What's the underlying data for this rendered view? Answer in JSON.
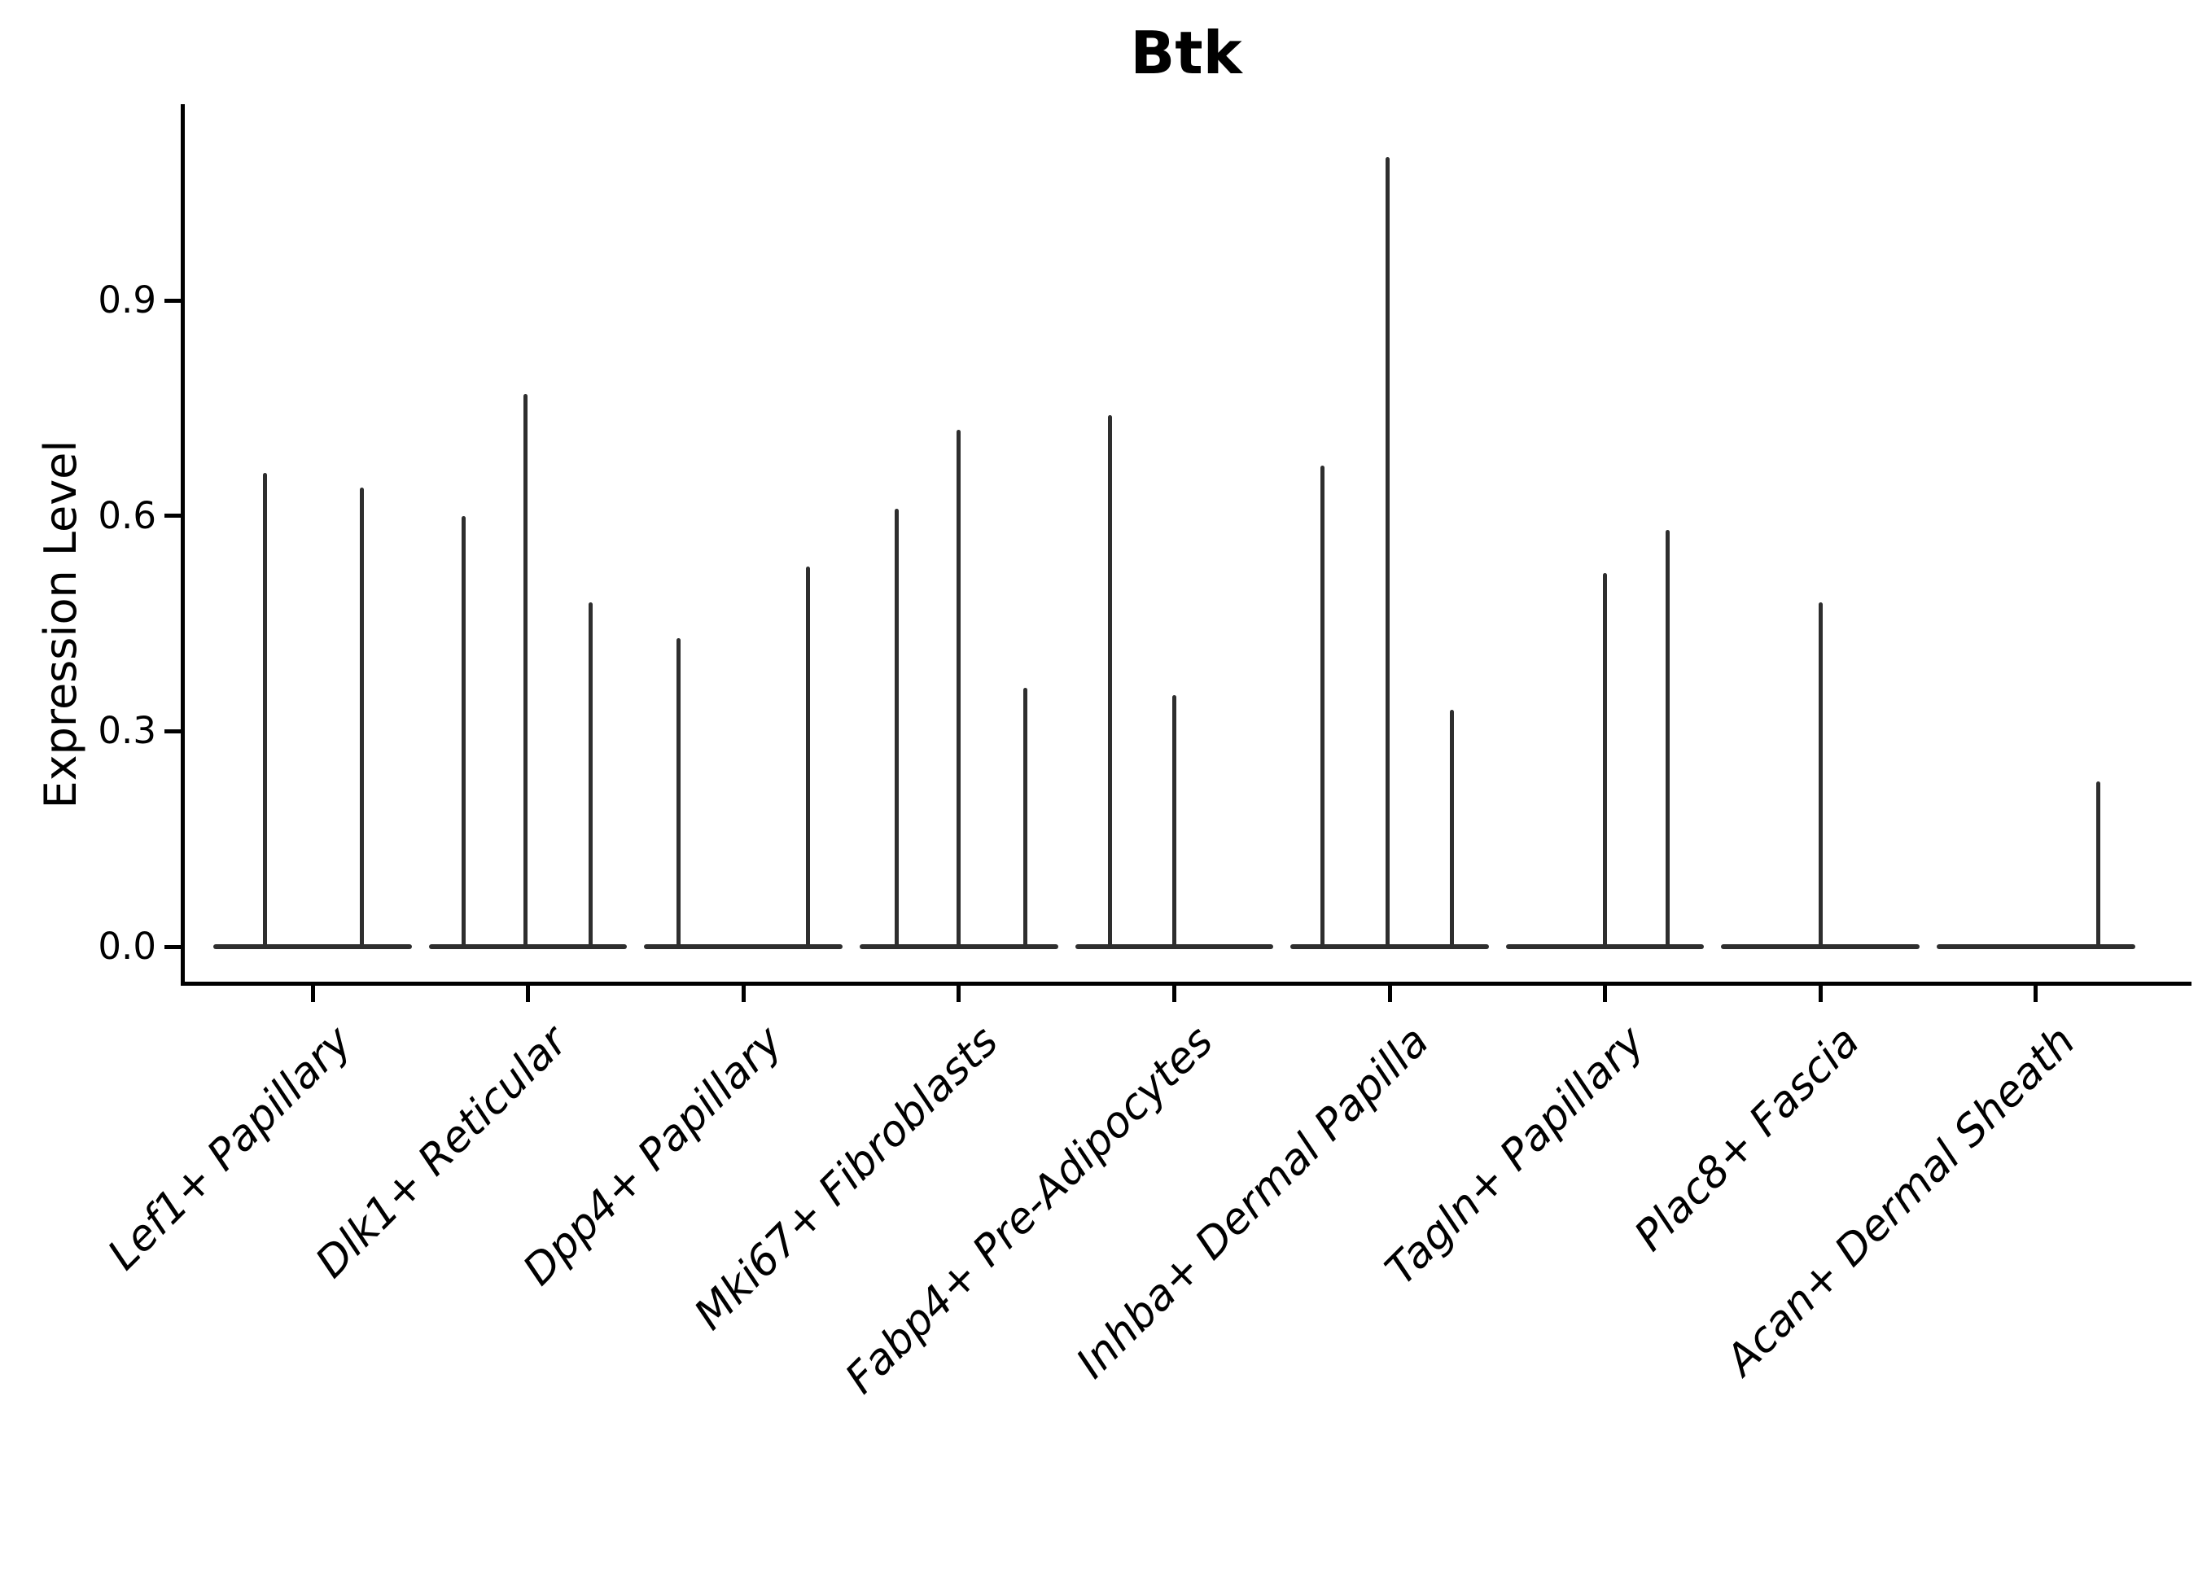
{
  "chart_data": {
    "type": "violin",
    "title": "Btk",
    "ylabel": "Expression Level",
    "xlabel": "",
    "grid": false,
    "legend": "none",
    "ylim": [
      0,
      1.17
    ],
    "yticks": [
      {
        "value": 0.0,
        "label": "0.0"
      },
      {
        "value": 0.3,
        "label": "0.3"
      },
      {
        "value": 0.6,
        "label": "0.6"
      },
      {
        "value": 0.9,
        "label": "0.9"
      }
    ],
    "categories": [
      "Lef1+ Papillary",
      "Dlk1+ Reticular",
      "Dpp4+ Papillary",
      "Mki67+ Fibroblasts",
      "Fabp4+ Pre-Adipocytes",
      "Inhba+ Dermal Papilla",
      "Tagln+ Papillary",
      "Plac8+ Fascia",
      "Acan+ Dermal Sheath"
    ],
    "groups": [
      {
        "category": "Lef1+ Papillary",
        "violins": [
          {
            "pos": -0.22,
            "max": 0.66
          },
          {
            "pos": 0.23,
            "max": 0.64
          }
        ]
      },
      {
        "category": "Dlk1+ Reticular",
        "violins": [
          {
            "pos": -0.3,
            "max": 0.6
          },
          {
            "pos": -0.01,
            "max": 0.77
          },
          {
            "pos": 0.29,
            "max": 0.48
          }
        ]
      },
      {
        "category": "Dpp4+ Papillary",
        "violins": [
          {
            "pos": -0.3,
            "max": 0.43
          },
          {
            "pos": 0.3,
            "max": 0.53
          }
        ]
      },
      {
        "category": "Mki67+ Fibroblasts",
        "violins": [
          {
            "pos": -0.29,
            "max": 0.61
          },
          {
            "pos": 0.0,
            "max": 0.72
          },
          {
            "pos": 0.31,
            "max": 0.36
          }
        ]
      },
      {
        "category": "Fabp4+ Pre-Adipocytes",
        "violins": [
          {
            "pos": -0.3,
            "max": 0.74
          },
          {
            "pos": 0.0,
            "max": 0.35
          }
        ]
      },
      {
        "category": "Inhba+ Dermal Papilla",
        "violins": [
          {
            "pos": -0.31,
            "max": 0.67
          },
          {
            "pos": -0.01,
            "max": 1.1
          },
          {
            "pos": 0.29,
            "max": 0.33
          }
        ]
      },
      {
        "category": "Tagln+ Papillary",
        "violins": [
          {
            "pos": 0.0,
            "max": 0.52
          },
          {
            "pos": 0.29,
            "max": 0.58
          }
        ]
      },
      {
        "category": "Plac8+ Fascia",
        "violins": [
          {
            "pos": 0.0,
            "max": 0.48
          }
        ]
      },
      {
        "category": "Acan+ Dermal Sheath",
        "violins": [
          {
            "pos": 0.29,
            "max": 0.23
          }
        ]
      }
    ],
    "colors": {
      "violin": "#2e2e2e",
      "axis": "#000000",
      "text": "#000000"
    }
  }
}
